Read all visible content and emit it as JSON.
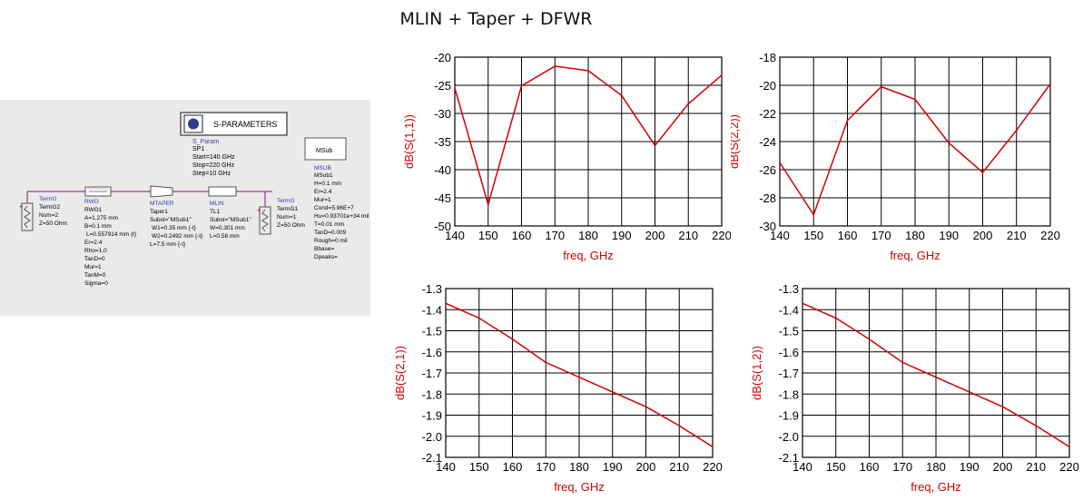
{
  "title": "MLIN + Taper + DFWR",
  "schematic": {
    "sparam_box_label": "S-PARAMETERS",
    "sparam_lines": [
      "S_Param",
      "SP1",
      "Start=140 GHz",
      "Stop=220 GHz",
      "Step=10 GHz"
    ],
    "msub_box_label": "MSub",
    "msub_lines": [
      "MSUB",
      "MSub1",
      "H=0.1 mm",
      "Er=2.4",
      "Mur=1",
      "Cond=5.96E+7",
      "Hu=0.93701e+34 mil",
      "T=0.01 mm",
      "TanD=0.009",
      "Rough=0 mil",
      "Bbase=",
      "Dpeaks="
    ],
    "termg2_lines": [
      "TermG",
      "TermG2",
      "Num=2",
      "Z=50 Ohm"
    ],
    "rwg_lines": [
      "RWG",
      "RWG1",
      "A=1.275 mm",
      "B=0.1 mm",
      "L=0.557914 mm {t}",
      "Er=2.4",
      "Rho=1.0",
      "TanD=0",
      "Mur=1",
      "TanM=0",
      "Sigma=0"
    ],
    "mtaper_lines": [
      "MTAPER",
      "Taper1",
      "Subst=\"MSub1\"",
      "W1=0.35 mm {-t}",
      "W2=0.2492 mm {-t}",
      "L=7.5 mm {-t}"
    ],
    "mlin_lines": [
      "MLIN",
      "TL1",
      "Subst=\"MSub1\"",
      "W=0.301 mm",
      "L=0.58 mm"
    ],
    "termg1_lines": [
      "TermG",
      "TermG1",
      "Num=1",
      "Z=50 Ohm"
    ]
  },
  "chart_data": [
    {
      "type": "line",
      "xlabel": "freq, GHz",
      "ylabel": "dB(S(1,1))",
      "xlim": [
        140,
        220
      ],
      "ylim": [
        -50,
        -20
      ],
      "xticks": [
        "140",
        "150",
        "160",
        "170",
        "180",
        "190",
        "200",
        "210",
        "220"
      ],
      "yticks": [
        "-20",
        "-25",
        "-30",
        "-35",
        "-40",
        "-45",
        "-50"
      ],
      "series": [
        {
          "x": [
            140,
            150,
            160,
            170,
            180,
            190,
            200,
            210,
            220
          ],
          "values": [
            -25.5,
            -46.2,
            -25.1,
            -21.6,
            -22.4,
            -26.8,
            -35.7,
            -28.3,
            -23.2
          ],
          "color": "#d40000"
        }
      ]
    },
    {
      "type": "line",
      "xlabel": "freq, GHz",
      "ylabel": "dB(S(2,2))",
      "xlim": [
        140,
        220
      ],
      "ylim": [
        -30,
        -18
      ],
      "xticks": [
        "140",
        "150",
        "160",
        "170",
        "180",
        "190",
        "200",
        "210",
        "220"
      ],
      "yticks": [
        "-18",
        "-20",
        "-22",
        "-24",
        "-26",
        "-28",
        "-30"
      ],
      "series": [
        {
          "x": [
            140,
            150,
            160,
            170,
            180,
            190,
            200,
            210,
            220
          ],
          "values": [
            -25.5,
            -29.2,
            -22.5,
            -20.1,
            -21.0,
            -24.1,
            -26.2,
            -23.2,
            -19.9
          ],
          "color": "#d40000"
        }
      ]
    },
    {
      "type": "line",
      "xlabel": "freq, GHz",
      "ylabel": "dB(S(2,1))",
      "xlim": [
        140,
        220
      ],
      "ylim": [
        -2.1,
        -1.3
      ],
      "xticks": [
        "140",
        "150",
        "160",
        "170",
        "180",
        "190",
        "200",
        "210",
        "220"
      ],
      "yticks": [
        "-1.3",
        "-1.4",
        "-1.5",
        "-1.6",
        "-1.7",
        "-1.8",
        "-1.9",
        "-2.0",
        "-2.1"
      ],
      "series": [
        {
          "x": [
            140,
            150,
            160,
            170,
            180,
            190,
            200,
            210,
            220
          ],
          "values": [
            -1.37,
            -1.44,
            -1.54,
            -1.65,
            -1.72,
            -1.79,
            -1.86,
            -1.95,
            -2.05
          ],
          "color": "#d40000"
        }
      ]
    },
    {
      "type": "line",
      "xlabel": "freq, GHz",
      "ylabel": "dB(S(1,2))",
      "xlim": [
        140,
        220
      ],
      "ylim": [
        -2.1,
        -1.3
      ],
      "xticks": [
        "140",
        "150",
        "160",
        "170",
        "180",
        "190",
        "200",
        "210",
        "220"
      ],
      "yticks": [
        "-1.3",
        "-1.4",
        "-1.5",
        "-1.6",
        "-1.7",
        "-1.8",
        "-1.9",
        "-2.0",
        "-2.1"
      ],
      "series": [
        {
          "x": [
            140,
            150,
            160,
            170,
            180,
            190,
            200,
            210,
            220
          ],
          "values": [
            -1.37,
            -1.44,
            -1.54,
            -1.65,
            -1.72,
            -1.79,
            -1.86,
            -1.95,
            -2.05
          ],
          "color": "#d40000"
        }
      ]
    }
  ]
}
